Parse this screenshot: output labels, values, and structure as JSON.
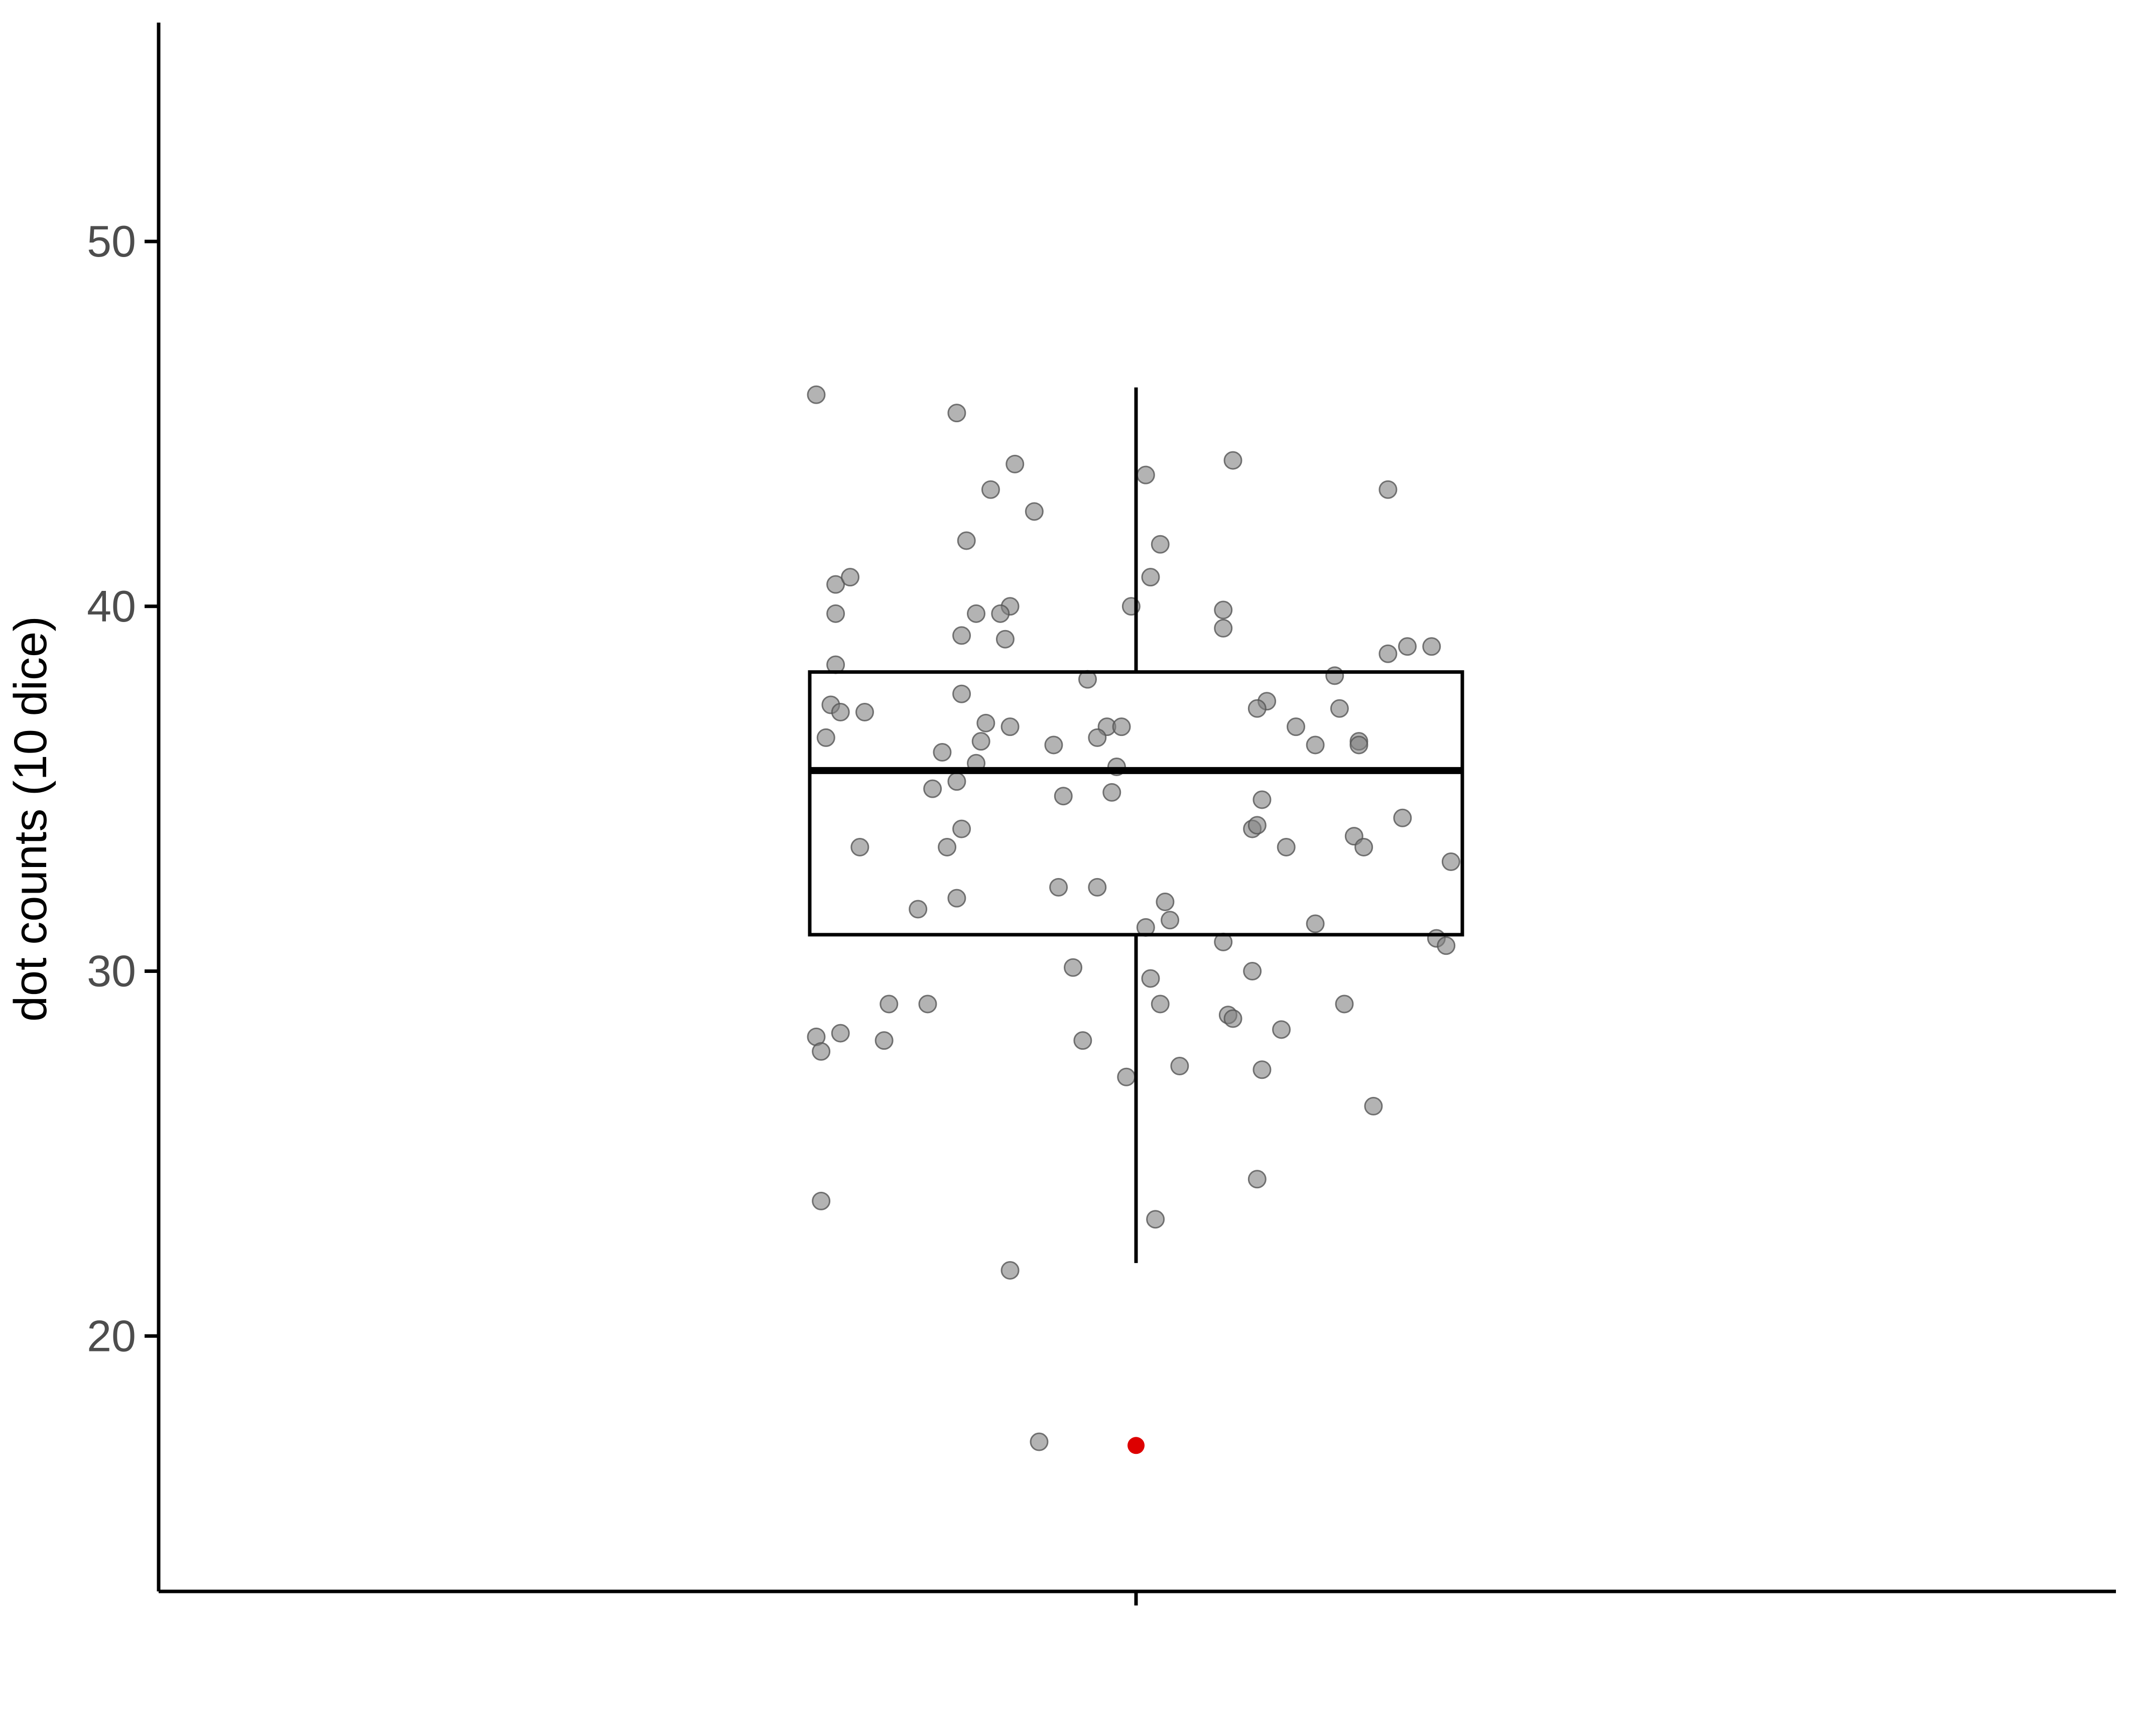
{
  "chart_data": {
    "type": "scatter",
    "subtype": "boxplot-with-jitter",
    "title": "",
    "xlabel": "",
    "ylabel": "dot counts (10 dice)",
    "ylim": [
      13,
      56
    ],
    "yticks": [
      20,
      30,
      40,
      50
    ],
    "grid": false,
    "legend": "none",
    "box": {
      "q1": 31.0,
      "median": 35.5,
      "q3": 38.2,
      "whisker_low": 22.0,
      "whisker_high": 46.0
    },
    "highlight_point": {
      "y": 17.0,
      "color": "#dd0000"
    },
    "colors": {
      "points": "#808080",
      "box": "#000000",
      "highlight": "#dd0000",
      "axis_text": "#4d4d4d"
    },
    "points": [
      {
        "jitter": -0.66,
        "y": 45.8
      },
      {
        "jitter": -0.37,
        "y": 45.3
      },
      {
        "jitter": -0.25,
        "y": 43.9
      },
      {
        "jitter": -0.3,
        "y": 43.2
      },
      {
        "jitter": -0.21,
        "y": 42.6
      },
      {
        "jitter": -0.35,
        "y": 41.8
      },
      {
        "jitter": 0.02,
        "y": 43.6
      },
      {
        "jitter": 0.2,
        "y": 44.0
      },
      {
        "jitter": 0.05,
        "y": 41.7
      },
      {
        "jitter": 0.52,
        "y": 43.2
      },
      {
        "jitter": -0.62,
        "y": 40.6
      },
      {
        "jitter": -0.59,
        "y": 40.8
      },
      {
        "jitter": -0.62,
        "y": 39.8
      },
      {
        "jitter": -0.26,
        "y": 40.0
      },
      {
        "jitter": -0.28,
        "y": 39.8
      },
      {
        "jitter": -0.33,
        "y": 39.8
      },
      {
        "jitter": -0.01,
        "y": 40.0
      },
      {
        "jitter": 0.03,
        "y": 40.8
      },
      {
        "jitter": 0.18,
        "y": 39.9
      },
      {
        "jitter": 0.18,
        "y": 39.4
      },
      {
        "jitter": -0.36,
        "y": 39.2
      },
      {
        "jitter": -0.27,
        "y": 39.1
      },
      {
        "jitter": 0.52,
        "y": 38.7
      },
      {
        "jitter": 0.56,
        "y": 38.9
      },
      {
        "jitter": 0.61,
        "y": 38.9
      },
      {
        "jitter": -0.62,
        "y": 38.4
      },
      {
        "jitter": -0.1,
        "y": 38.0
      },
      {
        "jitter": 0.41,
        "y": 38.1
      },
      {
        "jitter": -0.36,
        "y": 37.6
      },
      {
        "jitter": -0.63,
        "y": 37.3
      },
      {
        "jitter": -0.61,
        "y": 37.1
      },
      {
        "jitter": -0.56,
        "y": 37.1
      },
      {
        "jitter": 0.27,
        "y": 37.4
      },
      {
        "jitter": 0.25,
        "y": 37.2
      },
      {
        "jitter": 0.42,
        "y": 37.2
      },
      {
        "jitter": -0.64,
        "y": 36.4
      },
      {
        "jitter": -0.31,
        "y": 36.8
      },
      {
        "jitter": -0.26,
        "y": 36.7
      },
      {
        "jitter": -0.06,
        "y": 36.7
      },
      {
        "jitter": -0.03,
        "y": 36.7
      },
      {
        "jitter": 0.33,
        "y": 36.7
      },
      {
        "jitter": -0.32,
        "y": 36.3
      },
      {
        "jitter": -0.17,
        "y": 36.2
      },
      {
        "jitter": -0.08,
        "y": 36.4
      },
      {
        "jitter": 0.37,
        "y": 36.2
      },
      {
        "jitter": 0.46,
        "y": 36.3
      },
      {
        "jitter": 0.46,
        "y": 36.2
      },
      {
        "jitter": -0.4,
        "y": 36.0
      },
      {
        "jitter": -0.33,
        "y": 35.7
      },
      {
        "jitter": -0.04,
        "y": 35.6
      },
      {
        "jitter": -0.37,
        "y": 35.2
      },
      {
        "jitter": -0.42,
        "y": 35.0
      },
      {
        "jitter": -0.15,
        "y": 34.8
      },
      {
        "jitter": -0.05,
        "y": 34.9
      },
      {
        "jitter": 0.26,
        "y": 34.7
      },
      {
        "jitter": 0.55,
        "y": 34.2
      },
      {
        "jitter": -0.36,
        "y": 33.9
      },
      {
        "jitter": 0.24,
        "y": 33.9
      },
      {
        "jitter": 0.25,
        "y": 34.0
      },
      {
        "jitter": 0.45,
        "y": 33.7
      },
      {
        "jitter": -0.57,
        "y": 33.4
      },
      {
        "jitter": -0.39,
        "y": 33.4
      },
      {
        "jitter": 0.31,
        "y": 33.4
      },
      {
        "jitter": 0.47,
        "y": 33.4
      },
      {
        "jitter": 0.65,
        "y": 33.0
      },
      {
        "jitter": -0.16,
        "y": 32.3
      },
      {
        "jitter": -0.08,
        "y": 32.3
      },
      {
        "jitter": -0.37,
        "y": 32.0
      },
      {
        "jitter": 0.06,
        "y": 31.9
      },
      {
        "jitter": -0.45,
        "y": 31.7
      },
      {
        "jitter": 0.07,
        "y": 31.4
      },
      {
        "jitter": 0.37,
        "y": 31.3
      },
      {
        "jitter": 0.02,
        "y": 31.2
      },
      {
        "jitter": 0.18,
        "y": 30.8
      },
      {
        "jitter": 0.62,
        "y": 30.9
      },
      {
        "jitter": 0.64,
        "y": 30.7
      },
      {
        "jitter": -0.13,
        "y": 30.1
      },
      {
        "jitter": 0.24,
        "y": 30.0
      },
      {
        "jitter": 0.03,
        "y": 29.8
      },
      {
        "jitter": -0.51,
        "y": 29.1
      },
      {
        "jitter": -0.43,
        "y": 29.1
      },
      {
        "jitter": 0.05,
        "y": 29.1
      },
      {
        "jitter": 0.43,
        "y": 29.1
      },
      {
        "jitter": 0.19,
        "y": 28.8
      },
      {
        "jitter": 0.2,
        "y": 28.7
      },
      {
        "jitter": -0.61,
        "y": 28.3
      },
      {
        "jitter": -0.66,
        "y": 28.2
      },
      {
        "jitter": -0.52,
        "y": 28.1
      },
      {
        "jitter": -0.11,
        "y": 28.1
      },
      {
        "jitter": 0.3,
        "y": 28.4
      },
      {
        "jitter": -0.65,
        "y": 27.8
      },
      {
        "jitter": 0.09,
        "y": 27.4
      },
      {
        "jitter": 0.26,
        "y": 27.3
      },
      {
        "jitter": -0.02,
        "y": 27.1
      },
      {
        "jitter": 0.49,
        "y": 26.3
      },
      {
        "jitter": 0.25,
        "y": 24.3
      },
      {
        "jitter": -0.65,
        "y": 23.7
      },
      {
        "jitter": 0.04,
        "y": 23.2
      },
      {
        "jitter": -0.26,
        "y": 21.8
      },
      {
        "jitter": -0.2,
        "y": 17.1
      }
    ]
  }
}
